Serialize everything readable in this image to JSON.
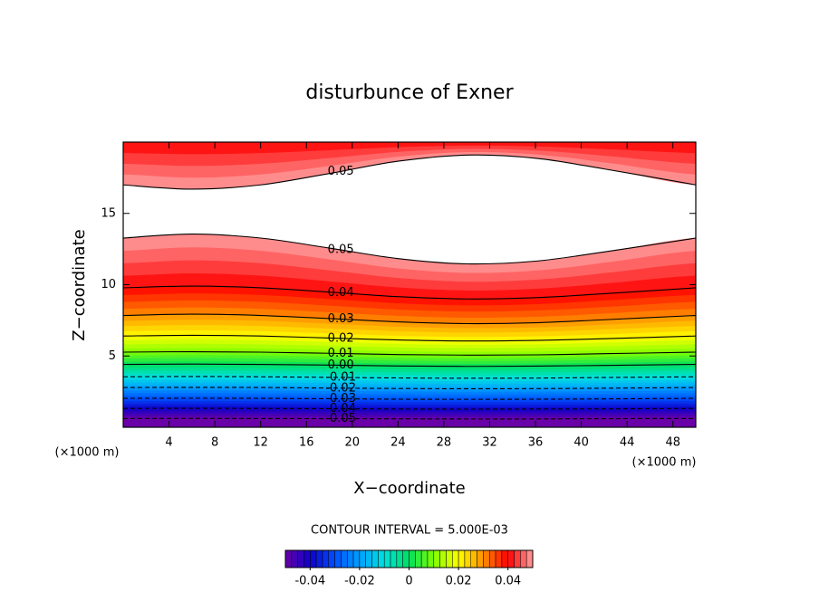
{
  "chart_data": {
    "type": "contour",
    "title": "disturbunce of Exner",
    "xlabel": "X−coordinate",
    "ylabel": "Z−coordinate",
    "x_unit": "(×1000 m)",
    "y_unit": "(×1000 m)",
    "interval_note": "CONTOUR INTERVAL = 5.000E-03",
    "xlim": [
      0,
      50
    ],
    "ylim": [
      0,
      20
    ],
    "xticks": [
      4,
      8,
      12,
      16,
      20,
      24,
      28,
      32,
      36,
      40,
      44,
      48
    ],
    "yticks": [
      5,
      10,
      15
    ],
    "x": [
      0,
      6,
      12,
      18,
      24,
      30,
      36,
      42,
      50
    ],
    "contours": [
      {
        "level": -0.05,
        "label": "-0.05",
        "z": [
          0.61,
          0.62,
          0.61,
          0.6,
          0.59,
          0.58,
          0.58,
          0.6,
          0.61
        ]
      },
      {
        "level": -0.04,
        "label": "-0.04",
        "z": [
          1.32,
          1.33,
          1.32,
          1.3,
          1.28,
          1.27,
          1.28,
          1.29,
          1.32
        ]
      },
      {
        "level": -0.03,
        "label": "-0.03",
        "z": [
          2.03,
          2.04,
          2.03,
          2.0,
          1.97,
          1.96,
          1.97,
          1.99,
          2.03
        ]
      },
      {
        "level": -0.02,
        "label": "-0.02",
        "z": [
          2.79,
          2.8,
          2.79,
          2.75,
          2.72,
          2.7,
          2.71,
          2.74,
          2.79
        ]
      },
      {
        "level": -0.01,
        "label": "-0.01",
        "z": [
          3.54,
          3.56,
          3.54,
          3.5,
          3.46,
          3.44,
          3.45,
          3.49,
          3.54
        ]
      },
      {
        "level": 0,
        "label": "0.00",
        "z": [
          4.41,
          4.43,
          4.41,
          4.36,
          4.3,
          4.27,
          4.29,
          4.34,
          4.41
        ]
      },
      {
        "level": 0.01,
        "label": "0.01",
        "z": [
          5.27,
          5.3,
          5.27,
          5.19,
          5.1,
          5.06,
          5.08,
          5.16,
          5.27
        ]
      },
      {
        "level": 0.02,
        "label": "0.02",
        "z": [
          6.4,
          6.45,
          6.4,
          6.26,
          6.12,
          6.05,
          6.09,
          6.21,
          6.4
        ]
      },
      {
        "level": 0.03,
        "label": "0.03",
        "z": [
          7.84,
          7.93,
          7.84,
          7.62,
          7.39,
          7.27,
          7.33,
          7.54,
          7.84
        ]
      },
      {
        "level": 0.04,
        "label": "0.04",
        "z": [
          9.78,
          9.9,
          9.78,
          9.48,
          9.16,
          9.0,
          9.09,
          9.37,
          9.78
        ]
      },
      {
        "level": 0.05,
        "label": "0.05",
        "z": [
          13.27,
          13.55,
          13.27,
          12.57,
          11.83,
          11.46,
          11.65,
          12.3,
          13.27
        ]
      },
      {
        "level": 0.05,
        "label": "0.05",
        "z": [
          17.0,
          16.7,
          17.0,
          17.8,
          18.66,
          19.09,
          18.87,
          18.12,
          17.0
        ]
      }
    ],
    "clim": [
      -0.05,
      0.05
    ],
    "colormap": [
      "#6a00a8",
      "#1000c8",
      "#0050ff",
      "#00a0ff",
      "#00e0e0",
      "#00e060",
      "#80ff00",
      "#ffff00",
      "#ff9000",
      "#ff0000",
      "#ffa0a0"
    ],
    "colorbar_ticks": [
      -0.04,
      -0.02,
      0,
      0.02,
      0.04
    ]
  }
}
